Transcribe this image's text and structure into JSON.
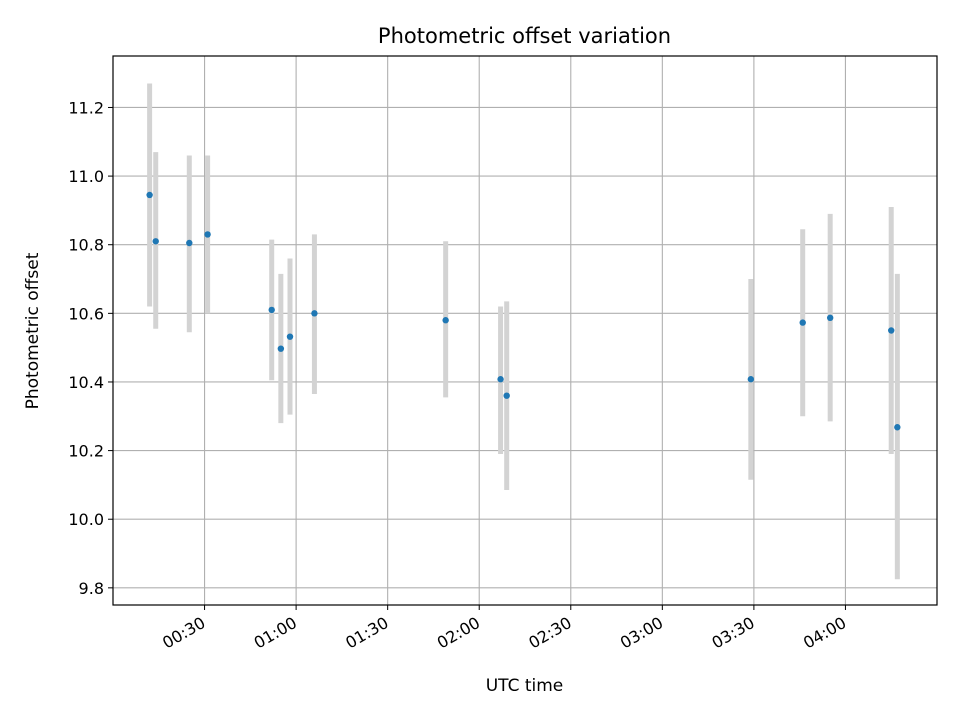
{
  "chart_data": {
    "type": "scatter",
    "title": "Photometric offset variation",
    "xlabel": "UTC time",
    "ylabel": "Photometric offset",
    "x_unit": "HH:MM",
    "xlim": [
      "00:00",
      "04:30"
    ],
    "ylim": [
      9.75,
      11.35
    ],
    "x_ticks": [
      "00:30",
      "01:00",
      "01:30",
      "02:00",
      "02:30",
      "03:00",
      "03:30",
      "04:00"
    ],
    "y_ticks": [
      9.8,
      10.0,
      10.2,
      10.4,
      10.6,
      10.8,
      11.0,
      11.2
    ],
    "grid": true,
    "point_color": "#1f77b4",
    "errorbar_color": "#d3d3d3",
    "points": [
      {
        "x": "00:12",
        "y": 10.945,
        "low": 10.62,
        "high": 11.27
      },
      {
        "x": "00:14",
        "y": 10.81,
        "low": 10.555,
        "high": 11.07
      },
      {
        "x": "00:25",
        "y": 10.805,
        "low": 10.545,
        "high": 11.06
      },
      {
        "x": "00:31",
        "y": 10.83,
        "low": 10.6,
        "high": 11.06
      },
      {
        "x": "00:52",
        "y": 10.61,
        "low": 10.405,
        "high": 10.815
      },
      {
        "x": "00:55",
        "y": 10.497,
        "low": 10.28,
        "high": 10.715
      },
      {
        "x": "00:58",
        "y": 10.532,
        "low": 10.305,
        "high": 10.76
      },
      {
        "x": "01:06",
        "y": 10.6,
        "low": 10.365,
        "high": 10.83
      },
      {
        "x": "01:49",
        "y": 10.58,
        "low": 10.355,
        "high": 10.81
      },
      {
        "x": "02:07",
        "y": 10.408,
        "low": 10.19,
        "high": 10.62
      },
      {
        "x": "02:09",
        "y": 10.36,
        "low": 10.085,
        "high": 10.635
      },
      {
        "x": "03:29",
        "y": 10.408,
        "low": 10.115,
        "high": 10.7
      },
      {
        "x": "03:46",
        "y": 10.573,
        "low": 10.3,
        "high": 10.845
      },
      {
        "x": "03:55",
        "y": 10.587,
        "low": 10.285,
        "high": 10.89
      },
      {
        "x": "04:15",
        "y": 10.55,
        "low": 10.19,
        "high": 10.91
      },
      {
        "x": "04:17",
        "y": 10.268,
        "low": 9.825,
        "high": 10.715
      }
    ]
  }
}
